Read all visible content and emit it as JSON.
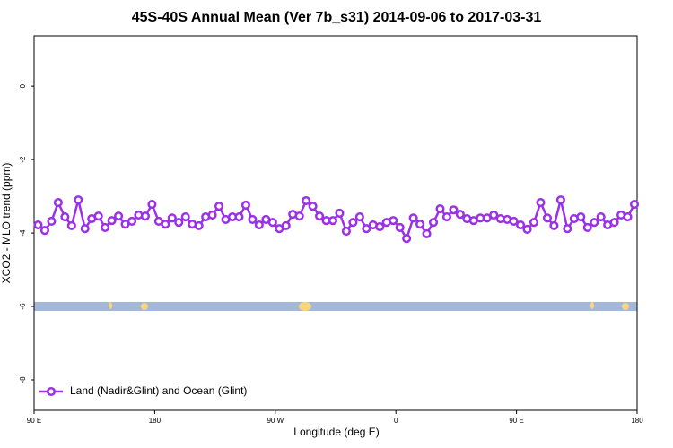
{
  "chart_data": {
    "type": "line",
    "title": "45S-40S Annual Mean (Ver 7b_s31)   2014-09-06 to 2017-03-31",
    "x_label": "Longitude (deg E)",
    "y_label": "XCO2 - MLO trend (ppm)",
    "xlim": [
      90,
      540
    ],
    "xticks": [
      {
        "value": 90,
        "label": "90 E"
      },
      {
        "value": 180,
        "label": "180"
      },
      {
        "value": 270,
        "label": "90 W"
      },
      {
        "value": 360,
        "label": "0"
      },
      {
        "value": 450,
        "label": "90 E"
      },
      {
        "value": 540,
        "label": "180"
      }
    ],
    "ylim": [
      -8.83,
      1.37
    ],
    "yticks": [
      0,
      -2,
      -4,
      -6,
      -8
    ],
    "legend": "bottom-left",
    "x": [
      93,
      98,
      103,
      108,
      113,
      118,
      123,
      128,
      133,
      138,
      143,
      148,
      153,
      158,
      163,
      168,
      173,
      178,
      183,
      188,
      193,
      198,
      203,
      208,
      213,
      218,
      223,
      228,
      233,
      238,
      243,
      248,
      253,
      258,
      263,
      268,
      273,
      278,
      283,
      288,
      293,
      298,
      303,
      308,
      313,
      318,
      323,
      328,
      333,
      338,
      343,
      348,
      353,
      358,
      363,
      368,
      373,
      378,
      383,
      388,
      393,
      398,
      403,
      408,
      413,
      418,
      423,
      428,
      433,
      438,
      443,
      448,
      453,
      458,
      463,
      468,
      473,
      478,
      483,
      488,
      493,
      498,
      503,
      508,
      513,
      518,
      523,
      528,
      533,
      538
    ],
    "series": [
      {
        "name": "Land (Nadir&Glint) and Ocean (Glint)",
        "color": "#9b30e6",
        "values": [
          -3.78,
          -3.93,
          -3.68,
          -3.17,
          -3.56,
          -3.8,
          -3.1,
          -3.88,
          -3.61,
          -3.54,
          -3.85,
          -3.66,
          -3.54,
          -3.76,
          -3.68,
          -3.51,
          -3.54,
          -3.22,
          -3.68,
          -3.76,
          -3.59,
          -3.71,
          -3.56,
          -3.76,
          -3.8,
          -3.56,
          -3.51,
          -3.27,
          -3.63,
          -3.56,
          -3.56,
          -3.24,
          -3.63,
          -3.78,
          -3.63,
          -3.71,
          -3.88,
          -3.8,
          -3.49,
          -3.54,
          -3.12,
          -3.27,
          -3.54,
          -3.66,
          -3.66,
          -3.46,
          -3.95,
          -3.71,
          -3.56,
          -3.88,
          -3.78,
          -3.83,
          -3.71,
          -3.66,
          -3.85,
          -4.15,
          -3.59,
          -3.76,
          -4.02,
          -3.71,
          -3.34,
          -3.56,
          -3.37,
          -3.49,
          -3.61,
          -3.66,
          -3.59,
          -3.59,
          -3.51,
          -3.61,
          -3.63,
          -3.68,
          -3.78,
          -3.9,
          -3.71,
          -3.17,
          -3.59,
          -3.8,
          -3.1,
          -3.88,
          -3.61,
          -3.56,
          -3.85,
          -3.71,
          -3.56,
          -3.78,
          -3.71,
          -3.51,
          -3.56,
          -3.22
        ]
      }
    ]
  }
}
